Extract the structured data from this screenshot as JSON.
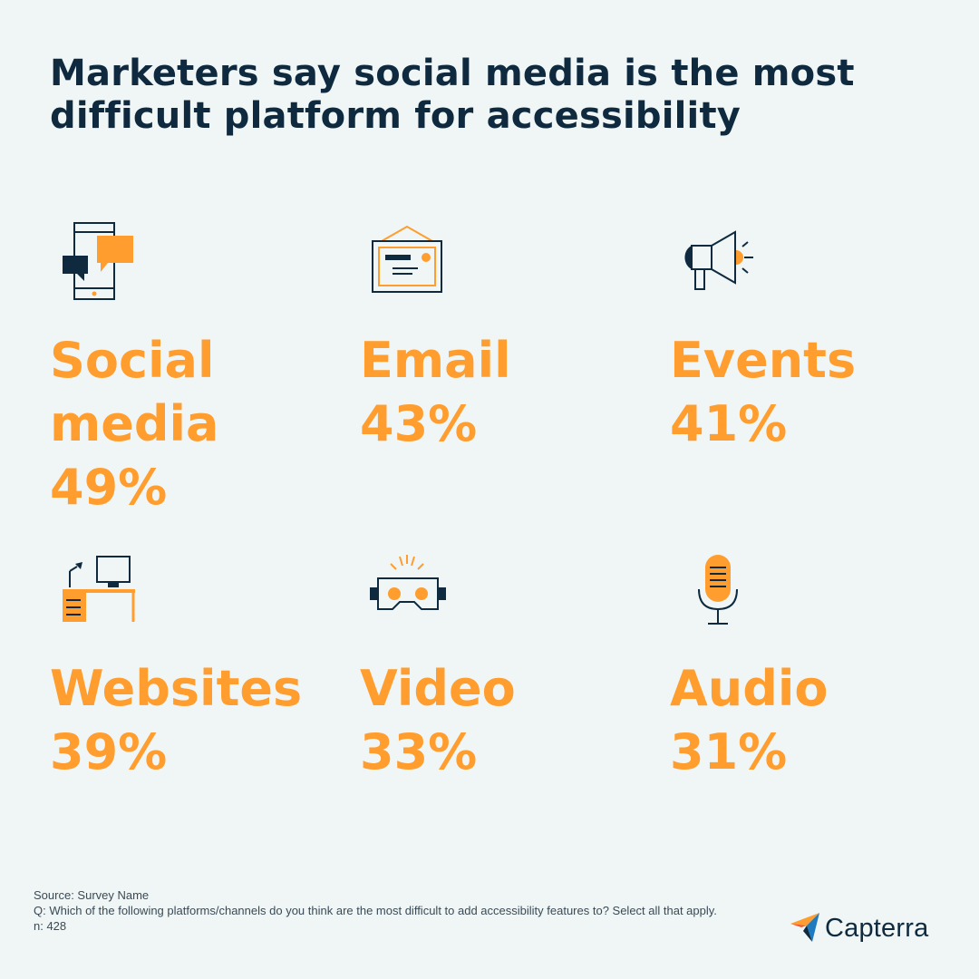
{
  "title": "Marketers say social media is the most difficult platform for accessibility",
  "colors": {
    "background": "#f0f6f6",
    "navy": "#0f2a3f",
    "orange": "#ff9d2e"
  },
  "items": [
    {
      "label": "Social\nmedia",
      "percent": "49%",
      "icon": "phone-chat-icon"
    },
    {
      "label": "Email",
      "percent": "43%",
      "icon": "envelope-icon"
    },
    {
      "label": "Events",
      "percent": "41%",
      "icon": "megaphone-icon"
    },
    {
      "label": "Websites",
      "percent": "39%",
      "icon": "desk-computer-icon"
    },
    {
      "label": "Video",
      "percent": "33%",
      "icon": "vr-headset-icon"
    },
    {
      "label": "Audio",
      "percent": "31%",
      "icon": "microphone-icon"
    }
  ],
  "footer": {
    "source": "Source: Survey Name",
    "question": "Q: Which of the following platforms/channels do you think are the most difficult to add accessibility features to? Select all that apply.",
    "n": "n: 428"
  },
  "logo": {
    "text": "Capterra",
    "icon": "capterra-arrow-icon"
  }
}
